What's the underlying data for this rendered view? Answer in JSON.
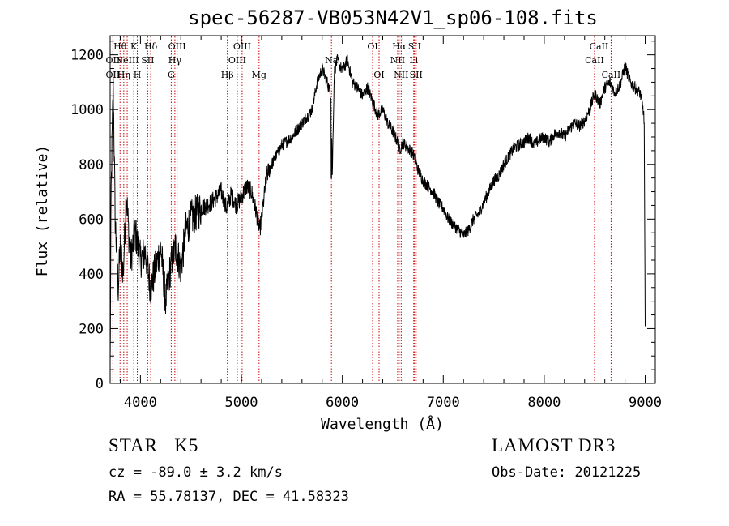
{
  "header": {
    "title": "spec-56287-VB053N42V1_sp06-108.fits"
  },
  "footer": {
    "object_class": "STAR",
    "subclass": "K5",
    "cz_text": "cz = -89.0 ± 3.2 km/s",
    "radec_text": "RA =  55.78137, DEC =  41.58323",
    "survey": "LAMOST DR3",
    "obs_date_text": "Obs-Date: 20121225"
  },
  "chart_data": {
    "type": "line",
    "title": "spec-56287-VB053N42V1_sp06-108.fits",
    "xlabel": "Wavelength (Å)",
    "ylabel": "Flux (relative)",
    "xlim": [
      3700,
      9100
    ],
    "ylim": [
      0,
      1270
    ],
    "xticks": [
      4000,
      5000,
      6000,
      7000,
      8000,
      9000
    ],
    "yticks": [
      0,
      200,
      400,
      600,
      800,
      1000,
      1200
    ],
    "x_minor_step": 200,
    "y_minor_step": 50,
    "line_color": "#000000",
    "marker_color": "#cc0000",
    "series": [
      {
        "name": "flux",
        "x": [
          3700,
          3710,
          3730,
          3750,
          3780,
          3800,
          3830,
          3860,
          3900,
          3950,
          4000,
          4050,
          4100,
          4150,
          4200,
          4250,
          4300,
          4350,
          4400,
          4450,
          4500,
          4600,
          4700,
          4800,
          4850,
          4900,
          4950,
          5000,
          5050,
          5100,
          5150,
          5180,
          5200,
          5250,
          5300,
          5400,
          5500,
          5600,
          5700,
          5750,
          5800,
          5850,
          5890,
          5900,
          5920,
          5950,
          6000,
          6050,
          6100,
          6150,
          6200,
          6250,
          6300,
          6350,
          6400,
          6450,
          6500,
          6550,
          6563,
          6600,
          6650,
          6700,
          6750,
          6800,
          6850,
          6900,
          6950,
          7000,
          7050,
          7100,
          7150,
          7200,
          7250,
          7300,
          7350,
          7400,
          7450,
          7500,
          7550,
          7600,
          7650,
          7700,
          7750,
          7800,
          7850,
          7900,
          7950,
          8000,
          8050,
          8100,
          8150,
          8200,
          8250,
          8300,
          8350,
          8400,
          8450,
          8500,
          8550,
          8600,
          8650,
          8700,
          8750,
          8800,
          8850,
          8900,
          8950,
          8980,
          8990,
          9000
        ],
        "y": [
          50,
          700,
          1100,
          600,
          350,
          500,
          400,
          700,
          450,
          550,
          450,
          480,
          350,
          420,
          500,
          300,
          430,
          500,
          420,
          560,
          600,
          640,
          660,
          700,
          640,
          690,
          650,
          680,
          720,
          700,
          620,
          560,
          600,
          760,
          800,
          870,
          900,
          950,
          1000,
          1100,
          1150,
          1100,
          1050,
          750,
          1140,
          1180,
          1140,
          1180,
          1100,
          1080,
          1050,
          1080,
          1030,
          980,
          1000,
          950,
          920,
          880,
          850,
          880,
          860,
          840,
          780,
          740,
          720,
          700,
          660,
          640,
          600,
          580,
          560,
          540,
          560,
          600,
          620,
          660,
          700,
          740,
          760,
          800,
          830,
          860,
          870,
          880,
          900,
          870,
          890,
          900,
          880,
          910,
          920,
          900,
          930,
          950,
          940,
          960,
          1000,
          1060,
          1020,
          1080,
          1100,
          1060,
          1090,
          1160,
          1100,
          1080,
          1060,
          1000,
          950,
          200
        ]
      }
    ],
    "line_markers": [
      {
        "wavelength": 3727,
        "row1": "",
        "row2": "OII",
        "row3": "OII"
      },
      {
        "wavelength": 3798,
        "row1": "Hθ",
        "row2": "",
        "row3": ""
      },
      {
        "wavelength": 3835,
        "row1": "",
        "row2": "",
        "row3": "Hη"
      },
      {
        "wavelength": 3869,
        "row1": "",
        "row2": "NeIII",
        "row3": ""
      },
      {
        "wavelength": 3934,
        "row1": "K",
        "row2": "",
        "row3": ""
      },
      {
        "wavelength": 3969,
        "row1": "",
        "row2": "",
        "row3": "H"
      },
      {
        "wavelength": 4072,
        "row1": "",
        "row2": "SII",
        "row3": ""
      },
      {
        "wavelength": 4102,
        "row1": "Hδ",
        "row2": "",
        "row3": ""
      },
      {
        "wavelength": 4305,
        "row1": "",
        "row2": "",
        "row3": "G"
      },
      {
        "wavelength": 4341,
        "row1": "",
        "row2": "Hγ",
        "row3": ""
      },
      {
        "wavelength": 4363,
        "row1": "OIII",
        "row2": "",
        "row3": ""
      },
      {
        "wavelength": 4861,
        "row1": "",
        "row2": "",
        "row3": "Hβ"
      },
      {
        "wavelength": 4959,
        "row1": "",
        "row2": "OIII",
        "row3": ""
      },
      {
        "wavelength": 5007,
        "row1": "OIII",
        "row2": "",
        "row3": ""
      },
      {
        "wavelength": 5175,
        "row1": "",
        "row2": "",
        "row3": "Mg"
      },
      {
        "wavelength": 5892,
        "row1": "",
        "row2": "Na",
        "row3": ""
      },
      {
        "wavelength": 6300,
        "row1": "OI",
        "row2": "",
        "row3": ""
      },
      {
        "wavelength": 6364,
        "row1": "",
        "row2": "",
        "row3": "OI"
      },
      {
        "wavelength": 6548,
        "row1": "",
        "row2": "NII",
        "row3": ""
      },
      {
        "wavelength": 6563,
        "row1": "Hα",
        "row2": "",
        "row3": ""
      },
      {
        "wavelength": 6583,
        "row1": "",
        "row2": "",
        "row3": "NII"
      },
      {
        "wavelength": 6707,
        "row1": "",
        "row2": "Li",
        "row3": ""
      },
      {
        "wavelength": 6716,
        "row1": "SII",
        "row2": "",
        "row3": ""
      },
      {
        "wavelength": 6731,
        "row1": "",
        "row2": "",
        "row3": "SII"
      },
      {
        "wavelength": 8498,
        "row1": "",
        "row2": "CaII",
        "row3": ""
      },
      {
        "wavelength": 8542,
        "row1": "CaII",
        "row2": "",
        "row3": ""
      },
      {
        "wavelength": 8662,
        "row1": "",
        "row2": "",
        "row3": "CaII"
      }
    ]
  }
}
